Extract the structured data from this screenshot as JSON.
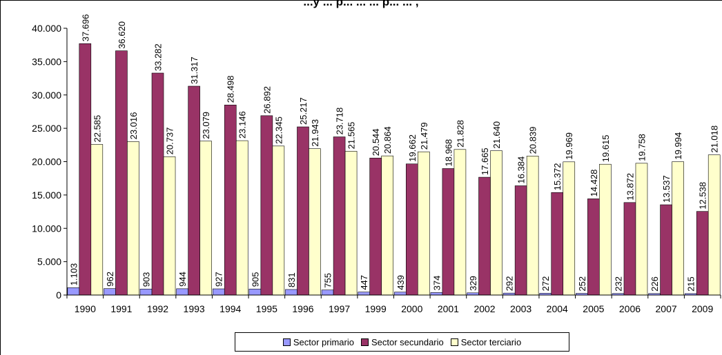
{
  "chart_data": {
    "type": "bar",
    "title": "...y ... p... ... ... p... ... ,",
    "xlabel": "",
    "ylabel": "",
    "ylim": [
      0,
      40000
    ],
    "yticks": [
      "0",
      "5.000",
      "10.000",
      "15.000",
      "20.000",
      "25.000",
      "30.000",
      "35.000",
      "40.000"
    ],
    "ytick_values": [
      0,
      5000,
      10000,
      15000,
      20000,
      25000,
      30000,
      35000,
      40000
    ],
    "grid": false,
    "legend_position": "bottom",
    "categories": [
      "1990",
      "1991",
      "1992",
      "1993",
      "1994",
      "1995",
      "1996",
      "1997",
      "1999",
      "2000",
      "2001",
      "2002",
      "2003",
      "2004",
      "2005",
      "2006",
      "2007",
      "2009"
    ],
    "series": [
      {
        "name": "Sector primario",
        "color": "#9999ff",
        "values": [
          1103,
          962,
          903,
          944,
          927,
          905,
          831,
          755,
          447,
          439,
          374,
          329,
          292,
          272,
          252,
          232,
          226,
          215
        ],
        "labels": [
          "1.103",
          "962",
          "903",
          "944",
          "927",
          "905",
          "831",
          "755",
          "447",
          "439",
          "374",
          "329",
          "292",
          "272",
          "252",
          "232",
          "226",
          "215"
        ]
      },
      {
        "name": "Sector secundario",
        "color": "#993366",
        "values": [
          37696,
          36620,
          33282,
          31317,
          28498,
          26892,
          25217,
          23718,
          20544,
          19662,
          18968,
          17665,
          16384,
          15372,
          14428,
          13872,
          13537,
          12538
        ],
        "labels": [
          "37.696",
          "36.620",
          "33.282",
          "31.317",
          "28.498",
          "26.892",
          "25.217",
          "23.718",
          "20.544",
          "19.662",
          "18.968",
          "17.665",
          "16.384",
          "15.372",
          "14.428",
          "13.872",
          "13.537",
          "12.538"
        ]
      },
      {
        "name": "Sector terciario",
        "color": "#ffffcc",
        "values": [
          22585,
          23016,
          20737,
          23079,
          23146,
          22345,
          21943,
          21565,
          20864,
          21479,
          21828,
          21640,
          20839,
          19969,
          19615,
          19758,
          19994,
          21018
        ],
        "labels": [
          "22.585",
          "23.016",
          "20.737",
          "23.079",
          "23.146",
          "22.345",
          "21.943",
          "21.565",
          "20.864",
          "21.479",
          "21.828",
          "21.640",
          "20.839",
          "19.969",
          "19.615",
          "19.758",
          "19.994",
          "21.018"
        ]
      }
    ]
  }
}
